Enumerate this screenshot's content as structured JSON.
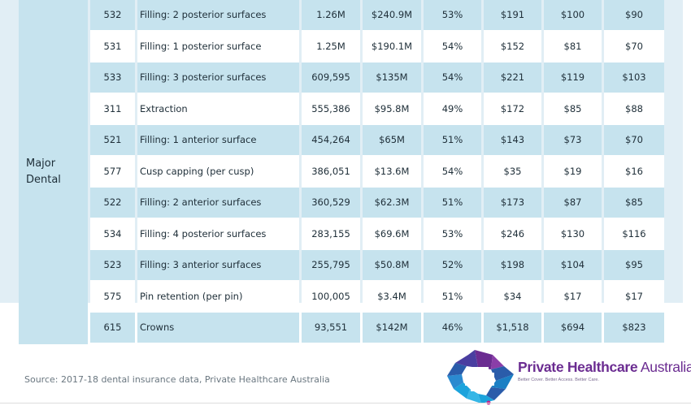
{
  "table": {
    "group_label": "Major Dental",
    "rows": [
      {
        "code": "532",
        "service": "Filling: 2 posterior surfaces",
        "claims": "1.26M",
        "benefits": "$240.9M",
        "pct": "53%",
        "fee": "$191",
        "paid": "$100",
        "gap": "$90"
      },
      {
        "code": "531",
        "service": "Filling: 1 posterior surface",
        "claims": "1.25M",
        "benefits": "$190.1M",
        "pct": "54%",
        "fee": "$152",
        "paid": "$81",
        "gap": "$70"
      },
      {
        "code": "533",
        "service": "Filling: 3 posterior surfaces",
        "claims": "609,595",
        "benefits": "$135M",
        "pct": "54%",
        "fee": "$221",
        "paid": "$119",
        "gap": "$103"
      },
      {
        "code": "311",
        "service": "Extraction",
        "claims": "555,386",
        "benefits": "$95.8M",
        "pct": "49%",
        "fee": "$172",
        "paid": "$85",
        "gap": "$88"
      },
      {
        "code": "521",
        "service": "Filling: 1 anterior surface",
        "claims": "454,264",
        "benefits": "$65M",
        "pct": "51%",
        "fee": "$143",
        "paid": "$73",
        "gap": "$70"
      },
      {
        "code": "577",
        "service": "Cusp capping (per cusp)",
        "claims": "386,051",
        "benefits": "$13.6M",
        "pct": "54%",
        "fee": "$35",
        "paid": "$19",
        "gap": "$16"
      },
      {
        "code": "522",
        "service": "Filling: 2 anterior surfaces",
        "claims": "360,529",
        "benefits": "$62.3M",
        "pct": "51%",
        "fee": "$173",
        "paid": "$87",
        "gap": "$85"
      },
      {
        "code": "534",
        "service": "Filling: 4 posterior surfaces",
        "claims": "283,155",
        "benefits": "$69.6M",
        "pct": "53%",
        "fee": "$246",
        "paid": "$130",
        "gap": "$116"
      },
      {
        "code": "523",
        "service": "Filling: 3 anterior surfaces",
        "claims": "255,795",
        "benefits": "$50.8M",
        "pct": "52%",
        "fee": "$198",
        "paid": "$104",
        "gap": "$95"
      },
      {
        "code": "575",
        "service": "Pin retention (per pin)",
        "claims": "100,005",
        "benefits": "$3.4M",
        "pct": "51%",
        "fee": "$34",
        "paid": "$17",
        "gap": "$17"
      },
      {
        "code": "615",
        "service": "Crowns",
        "claims": "93,551",
        "benefits": "$142M",
        "pct": "46%",
        "fee": "$1,518",
        "paid": "$694",
        "gap": "$823"
      }
    ]
  },
  "footer": {
    "source": "Source: 2017-18 dental insurance data, Private Healthcare Australia"
  },
  "logo": {
    "brand_bold": "Private Healthcare",
    "brand_light": " Australia",
    "tagline": "Better Cover. Better Access. Better Care.",
    "colors": {
      "cyan": "#1ba3dc",
      "blue": "#2a5caa",
      "purple": "#6b2c91",
      "magenta": "#c0288f"
    }
  }
}
